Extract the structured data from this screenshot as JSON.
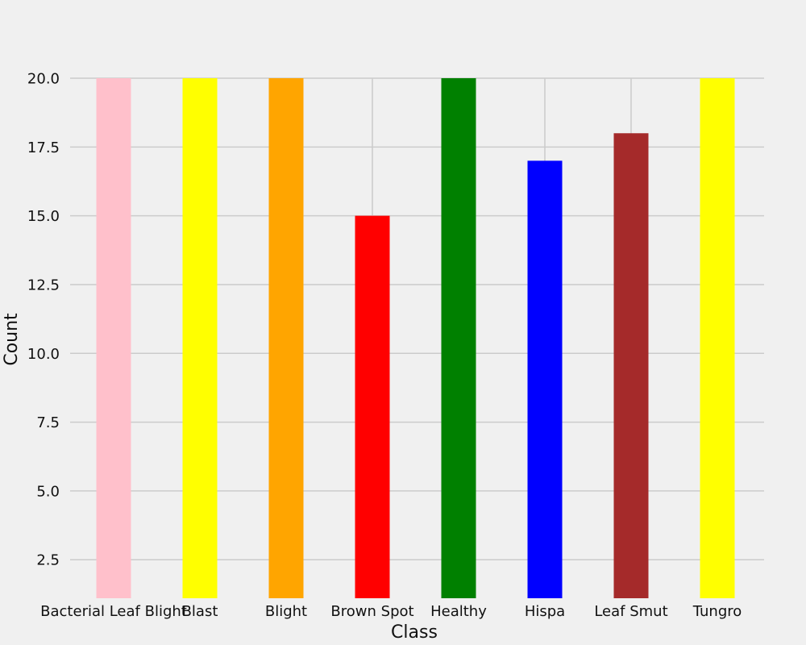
{
  "chart_data": {
    "type": "bar",
    "categories": [
      "Bacterial Leaf Blight",
      "Blast",
      "Blight",
      "Brown Spot",
      "Healthy",
      "Hispa",
      "Leaf Smut",
      "Tungro"
    ],
    "values": [
      20,
      20,
      20,
      15,
      20,
      17,
      18,
      20
    ],
    "colors": [
      "#ffc0cb",
      "#ffff00",
      "#ffa500",
      "#ff0000",
      "#008000",
      "#0000ff",
      "#a52a2a",
      "#ffff00"
    ],
    "xlabel": "Class",
    "ylabel": "Count",
    "yticks": [
      2.5,
      5.0,
      7.5,
      10.0,
      12.5,
      15.0,
      17.5,
      20.0
    ],
    "ylim": [
      1.1,
      20.0
    ],
    "grid": true,
    "background": "#f0f0f0",
    "gridColor": "#cbcbcb"
  }
}
